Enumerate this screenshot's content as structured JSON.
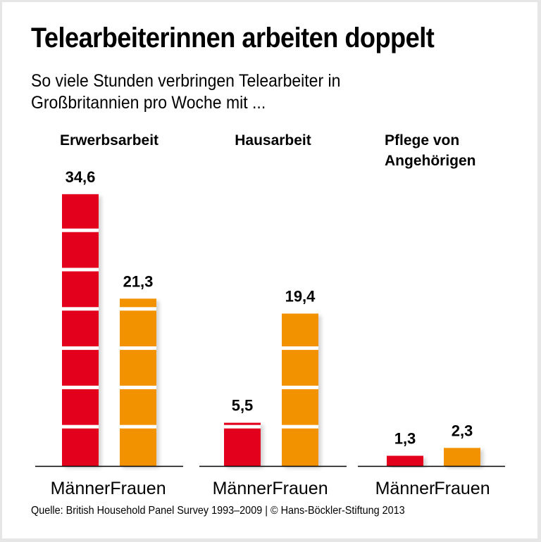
{
  "title": "Telearbeiterinnen arbeiten doppelt",
  "subtitle": [
    "So viele Stunden verbringen Telearbeiter in",
    "Großbritannien pro Woche mit ..."
  ],
  "footer": "Quelle: British Household Panel Survey 1993–2009 | © Hans-Böckler-Stiftung 2013",
  "colors": {
    "men": "#E2001A",
    "women": "#F39200",
    "axis": "#000000",
    "segment_divider": "#ffffff"
  },
  "chart_data": {
    "type": "bar",
    "title": "Telearbeiterinnen arbeiten doppelt",
    "unit": "Stunden pro Woche",
    "segment_step": 5,
    "groups": [
      {
        "label": [
          "Erwerbsarbeit"
        ],
        "label_align": "center",
        "bars": [
          {
            "name": "Männer",
            "value": 34.6,
            "label": "34,6"
          },
          {
            "name": "Frauen",
            "value": 21.3,
            "label": "21,3"
          }
        ]
      },
      {
        "label": [
          "Hausarbeit"
        ],
        "label_align": "center",
        "bars": [
          {
            "name": "Männer",
            "value": 5.5,
            "label": "5,5"
          },
          {
            "name": "Frauen",
            "value": 19.4,
            "label": "19,4"
          }
        ]
      },
      {
        "label": [
          "Pflege von",
          "Angehörigen"
        ],
        "label_align": "left",
        "bars": [
          {
            "name": "Männer",
            "value": 1.3,
            "label": "1,3"
          },
          {
            "name": "Frauen",
            "value": 2.3,
            "label": "2,3"
          }
        ]
      }
    ],
    "series": [
      {
        "name": "Männer",
        "values": [
          34.6,
          5.5,
          1.3
        ]
      },
      {
        "name": "Frauen",
        "values": [
          21.3,
          19.4,
          2.3
        ]
      }
    ],
    "categories": [
      "Erwerbsarbeit",
      "Hausarbeit",
      "Pflege von Angehörigen"
    ],
    "ylim": [
      0,
      35
    ],
    "grid": false,
    "legend": "none"
  }
}
